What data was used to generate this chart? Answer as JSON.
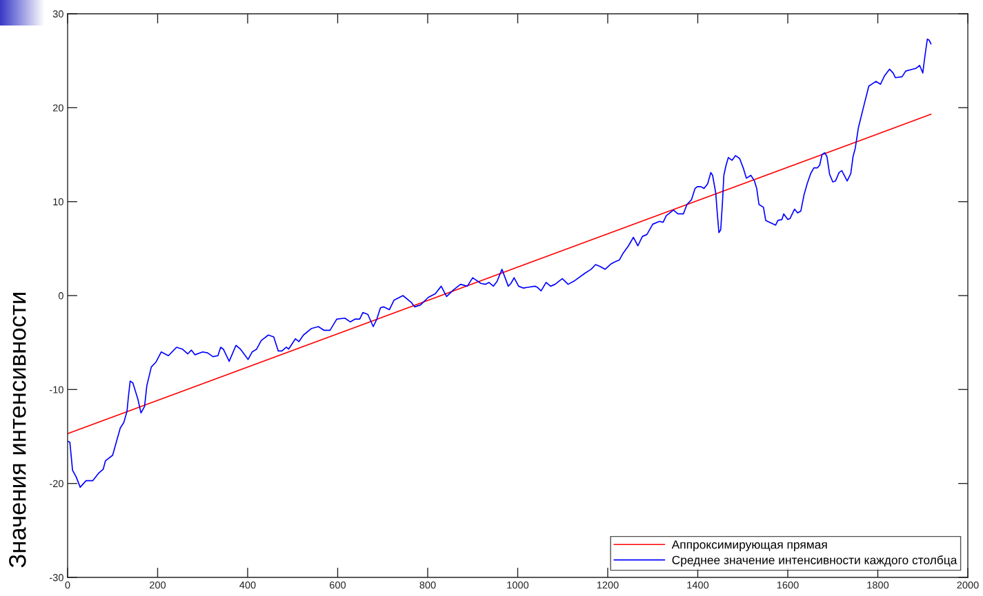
{
  "chart_data": {
    "type": "line",
    "ylabel": "Значения интенсивности",
    "xlim": [
      0,
      2000
    ],
    "ylim": [
      -30,
      30
    ],
    "xticks": [
      0,
      200,
      400,
      600,
      800,
      1000,
      1200,
      1400,
      1600,
      1800,
      2000
    ],
    "yticks": [
      -30,
      -20,
      -10,
      0,
      10,
      20,
      30
    ],
    "grid": false,
    "legend": "bottom right",
    "line_style": "solid",
    "marker": "none",
    "series": [
      {
        "name": "Аппроксимирующая прямая",
        "color": "#ff0000",
        "x": [
          0,
          1918
        ],
        "values": [
          -14.7,
          19.3
        ]
      },
      {
        "name": "Среднее значение интенсивности каждого столбца",
        "color": "#0000ff",
        "x": [
          0,
          5,
          11,
          19,
          28,
          41,
          56,
          69,
          79,
          84,
          100,
          110,
          117,
          125,
          132,
          135,
          139,
          145,
          156,
          163,
          171,
          176,
          186,
          196,
          208,
          224,
          242,
          255,
          267,
          275,
          283,
          300,
          311,
          323,
          334,
          340,
          346,
          359,
          374,
          384,
          401,
          410,
          420,
          430,
          446,
          458,
          468,
          476,
          486,
          491,
          506,
          514,
          524,
          542,
          557,
          570,
          583,
          598,
          616,
          628,
          639,
          649,
          656,
          667,
          679,
          687,
          695,
          702,
          715,
          725,
          745,
          763,
          771,
          784,
          801,
          817,
          830,
          842,
          857,
          873,
          888,
          900,
          918,
          928,
          936,
          946,
          954,
          965,
          972,
          979,
          985,
          992,
          1002,
          1012,
          1038,
          1043,
          1052,
          1063,
          1073,
          1083,
          1099,
          1112,
          1127,
          1150,
          1163,
          1173,
          1183,
          1194,
          1208,
          1216,
          1226,
          1234,
          1246,
          1257,
          1267,
          1277,
          1287,
          1300,
          1315,
          1323,
          1330,
          1346,
          1356,
          1368,
          1376,
          1386,
          1394,
          1399,
          1407,
          1414,
          1422,
          1429,
          1433,
          1440,
          1443,
          1447,
          1451,
          1455,
          1458,
          1463,
          1468,
          1476,
          1484,
          1493,
          1501,
          1508,
          1518,
          1526,
          1531,
          1536,
          1546,
          1551,
          1564,
          1573,
          1578,
          1587,
          1591,
          1600,
          1605,
          1615,
          1622,
          1629,
          1636,
          1643,
          1651,
          1658,
          1666,
          1671,
          1676,
          1682,
          1687,
          1693,
          1700,
          1706,
          1714,
          1720,
          1732,
          1740,
          1745,
          1750,
          1757,
          1770,
          1780,
          1796,
          1806,
          1815,
          1826,
          1834,
          1839,
          1854,
          1862,
          1877,
          1885,
          1893,
          1900,
          1902,
          1905,
          1910,
          1914,
          1918
        ],
        "values": [
          -15.5,
          -15.6,
          -18.6,
          -19.3,
          -20.4,
          -19.7,
          -19.7,
          -18.9,
          -18.5,
          -17.6,
          -17.0,
          -15.3,
          -14.1,
          -13.5,
          -12.3,
          -10.8,
          -9.1,
          -9.3,
          -11.0,
          -12.5,
          -11.8,
          -9.6,
          -7.6,
          -7.1,
          -6.0,
          -6.4,
          -5.5,
          -5.7,
          -6.2,
          -5.8,
          -6.3,
          -6.0,
          -6.1,
          -6.5,
          -6.4,
          -5.5,
          -5.7,
          -7.0,
          -5.3,
          -5.7,
          -6.8,
          -6.0,
          -5.7,
          -4.8,
          -4.2,
          -4.4,
          -5.9,
          -5.9,
          -5.5,
          -5.7,
          -4.6,
          -4.9,
          -4.2,
          -3.5,
          -3.3,
          -3.7,
          -3.7,
          -2.5,
          -2.4,
          -2.8,
          -2.5,
          -2.5,
          -1.8,
          -2.0,
          -3.3,
          -2.5,
          -1.3,
          -1.2,
          -1.5,
          -0.5,
          0.0,
          -0.7,
          -1.2,
          -1.0,
          -0.2,
          0.2,
          1.0,
          -0.1,
          0.6,
          1.2,
          1.0,
          1.9,
          1.3,
          1.2,
          1.4,
          1.0,
          1.5,
          2.8,
          1.9,
          1.0,
          1.3,
          1.9,
          1.0,
          0.8,
          1.0,
          0.9,
          0.5,
          1.4,
          1.0,
          1.2,
          1.8,
          1.2,
          1.6,
          2.4,
          2.8,
          3.3,
          3.1,
          2.8,
          3.4,
          3.6,
          3.8,
          4.5,
          5.3,
          6.2,
          5.3,
          6.3,
          6.5,
          7.6,
          7.9,
          7.8,
          8.5,
          9.1,
          8.7,
          8.7,
          9.7,
          10.2,
          11.4,
          11.6,
          11.6,
          11.4,
          11.9,
          13.1,
          12.8,
          10.9,
          9.0,
          6.7,
          7.0,
          10.0,
          12.8,
          13.9,
          14.7,
          14.4,
          14.9,
          14.6,
          13.6,
          12.5,
          12.8,
          12.2,
          11.4,
          9.7,
          9.4,
          8.0,
          7.7,
          7.5,
          8.0,
          8.1,
          8.7,
          8.1,
          8.2,
          9.2,
          8.8,
          9.0,
          10.7,
          11.9,
          13.0,
          13.6,
          13.6,
          13.9,
          15.0,
          15.2,
          14.8,
          12.9,
          12.1,
          12.2,
          13.1,
          13.3,
          12.2,
          13.0,
          14.8,
          15.7,
          17.9,
          20.4,
          22.3,
          22.8,
          22.5,
          23.4,
          24.1,
          23.7,
          23.2,
          23.3,
          23.9,
          24.1,
          24.2,
          24.5,
          23.7,
          24.5,
          25.6,
          27.3,
          27.2,
          26.8
        ]
      }
    ]
  }
}
